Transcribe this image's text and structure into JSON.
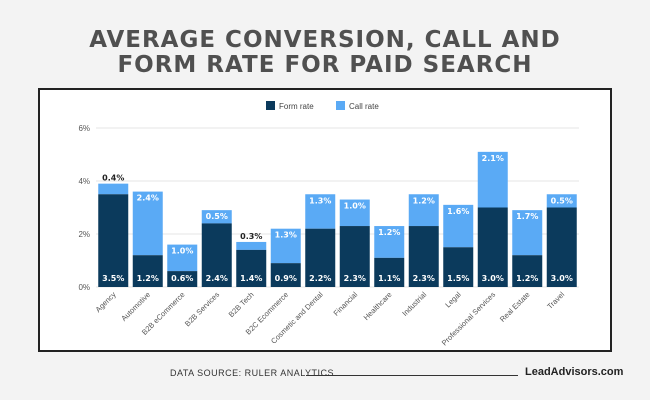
{
  "page": {
    "title_lines": [
      "AVERAGE CONVERSION, CALL AND",
      "FORM RATE FOR PAID SEARCH"
    ],
    "source": "DATA SOURCE: RULER ANALYTICS",
    "brand": "LeadAdvisors.com"
  },
  "colors": {
    "form_rate": "#0b3a5c",
    "call_rate": "#5aaaf5"
  },
  "chart_data": {
    "type": "bar",
    "stacked": true,
    "categories": [
      "Agency",
      "Automotive",
      "B2B eCommerce",
      "B2B Services",
      "B2B Tech",
      "B2C Ecommerce",
      "Cosmetic and Dental",
      "Financial",
      "Healthcare",
      "Industrial",
      "Legal",
      "Professional Services",
      "Real Estate",
      "Travel"
    ],
    "series": [
      {
        "name": "Form rate",
        "values": [
          3.5,
          1.2,
          0.6,
          2.4,
          1.4,
          0.9,
          2.2,
          2.3,
          1.1,
          2.3,
          1.5,
          3.0,
          1.2,
          3.0
        ],
        "labels": [
          "3.5%",
          "1.2%",
          "0.6%",
          "2.4%",
          "1.4%",
          "0.9%",
          "2.2%",
          "2.3%",
          "1.1%",
          "2.3%",
          "1.5%",
          "3.0%",
          "1.2%",
          "3.0%"
        ]
      },
      {
        "name": "Call rate",
        "values": [
          0.4,
          2.4,
          1.0,
          0.5,
          0.3,
          1.3,
          1.3,
          1.0,
          1.2,
          1.2,
          1.6,
          2.1,
          1.7,
          0.5
        ],
        "labels": [
          "0.4%",
          "2.4%",
          "1.0%",
          "0.5%",
          "0.3%",
          "1.3%",
          "1.3%",
          "1.0%",
          "1.2%",
          "1.2%",
          "1.6%",
          "2.1%",
          "1.7%",
          "0.5%"
        ]
      }
    ],
    "ylim": [
      0,
      6
    ],
    "yticks": [
      "0%",
      "2%",
      "4%",
      "6%"
    ],
    "grid": true,
    "legend": "top-center"
  }
}
